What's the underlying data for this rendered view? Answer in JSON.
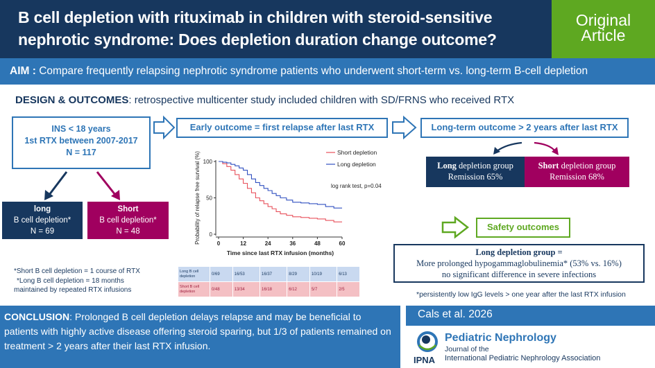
{
  "header": {
    "title": "B cell depletion with rituximab in children with steroid-sensitive nephrotic syndrome: Does depletion duration change outcome?",
    "badge_line1": "Original",
    "badge_line2": "Article",
    "bg_color": "#17375e",
    "badge_color": "#5ea821"
  },
  "aim": {
    "label": "AIM :",
    "text": "Compare frequently relapsing nephrotic syndrome patients who underwent short-term vs. long-term B-cell depletion"
  },
  "design": {
    "label": "DESIGN & OUTCOMES",
    "text": ": retrospective multicenter study included children with SD/FRNS who received RTX"
  },
  "population": {
    "line1": "INS < 18 years",
    "line2": "1st RTX between 2007-2017",
    "line3": "N = 117"
  },
  "early_outcome": "Early outcome = first relapse after last RTX",
  "longterm_outcome": "Long-term outcome > 2 years after last RTX",
  "groups": {
    "long": {
      "line1": "long",
      "line2": "B cell depletion*",
      "line3": "N = 69"
    },
    "short": {
      "line1": "Short",
      "line2": "B cell depletion*",
      "line3": "N = 48"
    }
  },
  "remission": {
    "long": {
      "bold": "Long",
      "rest": " depletion group",
      "line2": "Remission 65%"
    },
    "short": {
      "bold": "Short",
      "rest": " depletion group",
      "line2": "Remission 68%"
    }
  },
  "safety": {
    "label": "Safety outcomes",
    "title": "Long depletion group =",
    "line2": "More prolonged hypogammaglobulinemia* (53% vs. 16%)",
    "line3": "no significant difference in severe infections",
    "note": "*persistently low IgG levels > one year after the last RTX infusion"
  },
  "footnote": {
    "line1": "*Short B cell depletion = 1 course of RTX",
    "line2": "*Long B cell depletion = 18 months",
    "line3": "maintained by repeated RTX infusions"
  },
  "chart_data": {
    "type": "line",
    "ylabel": "Probability of relapse free survival (%)",
    "xlabel": "Time since last RTX infusion (months)",
    "x_ticks": [
      "0",
      "12",
      "24",
      "36",
      "48",
      "60"
    ],
    "y_ticks": [
      "0",
      "50",
      "100"
    ],
    "xlim": [
      0,
      60
    ],
    "ylim": [
      0,
      100
    ],
    "annotation": "log rank test, p=0.04",
    "series": [
      {
        "name": "Short depletion",
        "color": "#e8505b",
        "points": [
          [
            0,
            100
          ],
          [
            2,
            97
          ],
          [
            4,
            93
          ],
          [
            6,
            88
          ],
          [
            8,
            82
          ],
          [
            10,
            76
          ],
          [
            12,
            70
          ],
          [
            14,
            63
          ],
          [
            16,
            57
          ],
          [
            18,
            50
          ],
          [
            20,
            46
          ],
          [
            22,
            42
          ],
          [
            24,
            38
          ],
          [
            26,
            35
          ],
          [
            28,
            31
          ],
          [
            30,
            28
          ],
          [
            33,
            26
          ],
          [
            36,
            24
          ],
          [
            40,
            23
          ],
          [
            44,
            22
          ],
          [
            48,
            21
          ],
          [
            52,
            19
          ],
          [
            56,
            17
          ],
          [
            60,
            17
          ]
        ]
      },
      {
        "name": "Long depletion",
        "color": "#3050c0",
        "points": [
          [
            0,
            100
          ],
          [
            2,
            99
          ],
          [
            4,
            98
          ],
          [
            6,
            96
          ],
          [
            8,
            94
          ],
          [
            10,
            91
          ],
          [
            12,
            88
          ],
          [
            14,
            82
          ],
          [
            16,
            76
          ],
          [
            18,
            71
          ],
          [
            20,
            67
          ],
          [
            22,
            63
          ],
          [
            24,
            60
          ],
          [
            26,
            56
          ],
          [
            28,
            53
          ],
          [
            30,
            50
          ],
          [
            33,
            47
          ],
          [
            36,
            44
          ],
          [
            40,
            43
          ],
          [
            44,
            42
          ],
          [
            48,
            41
          ],
          [
            52,
            38
          ],
          [
            56,
            36
          ],
          [
            60,
            36
          ]
        ]
      }
    ]
  },
  "risk_table": {
    "rows": [
      {
        "label": "Long B cell depletion",
        "values": [
          "0/69",
          "16/53",
          "16/37",
          "8/29",
          "10/19",
          "6/13"
        ]
      },
      {
        "label": "Short B cell depletion",
        "values": [
          "0/48",
          "13/34",
          "16/18",
          "6/12",
          "5/7",
          "2/5"
        ]
      }
    ]
  },
  "conclusion": {
    "label": "CONCLUSION",
    "text": ": Prolonged B cell depletion delays relapse and may be beneficial to patients with highly active disease offering steroid sparing, but 1/3 of patients remained on treatment > 2 years after their last RTX infusion."
  },
  "citation": "Cals et al. 2026",
  "journal": {
    "name": "Pediatric Nephrology",
    "line2": "Journal of the",
    "line3": "International Pediatric Nephrology Association",
    "logo_text": "IPNA"
  }
}
